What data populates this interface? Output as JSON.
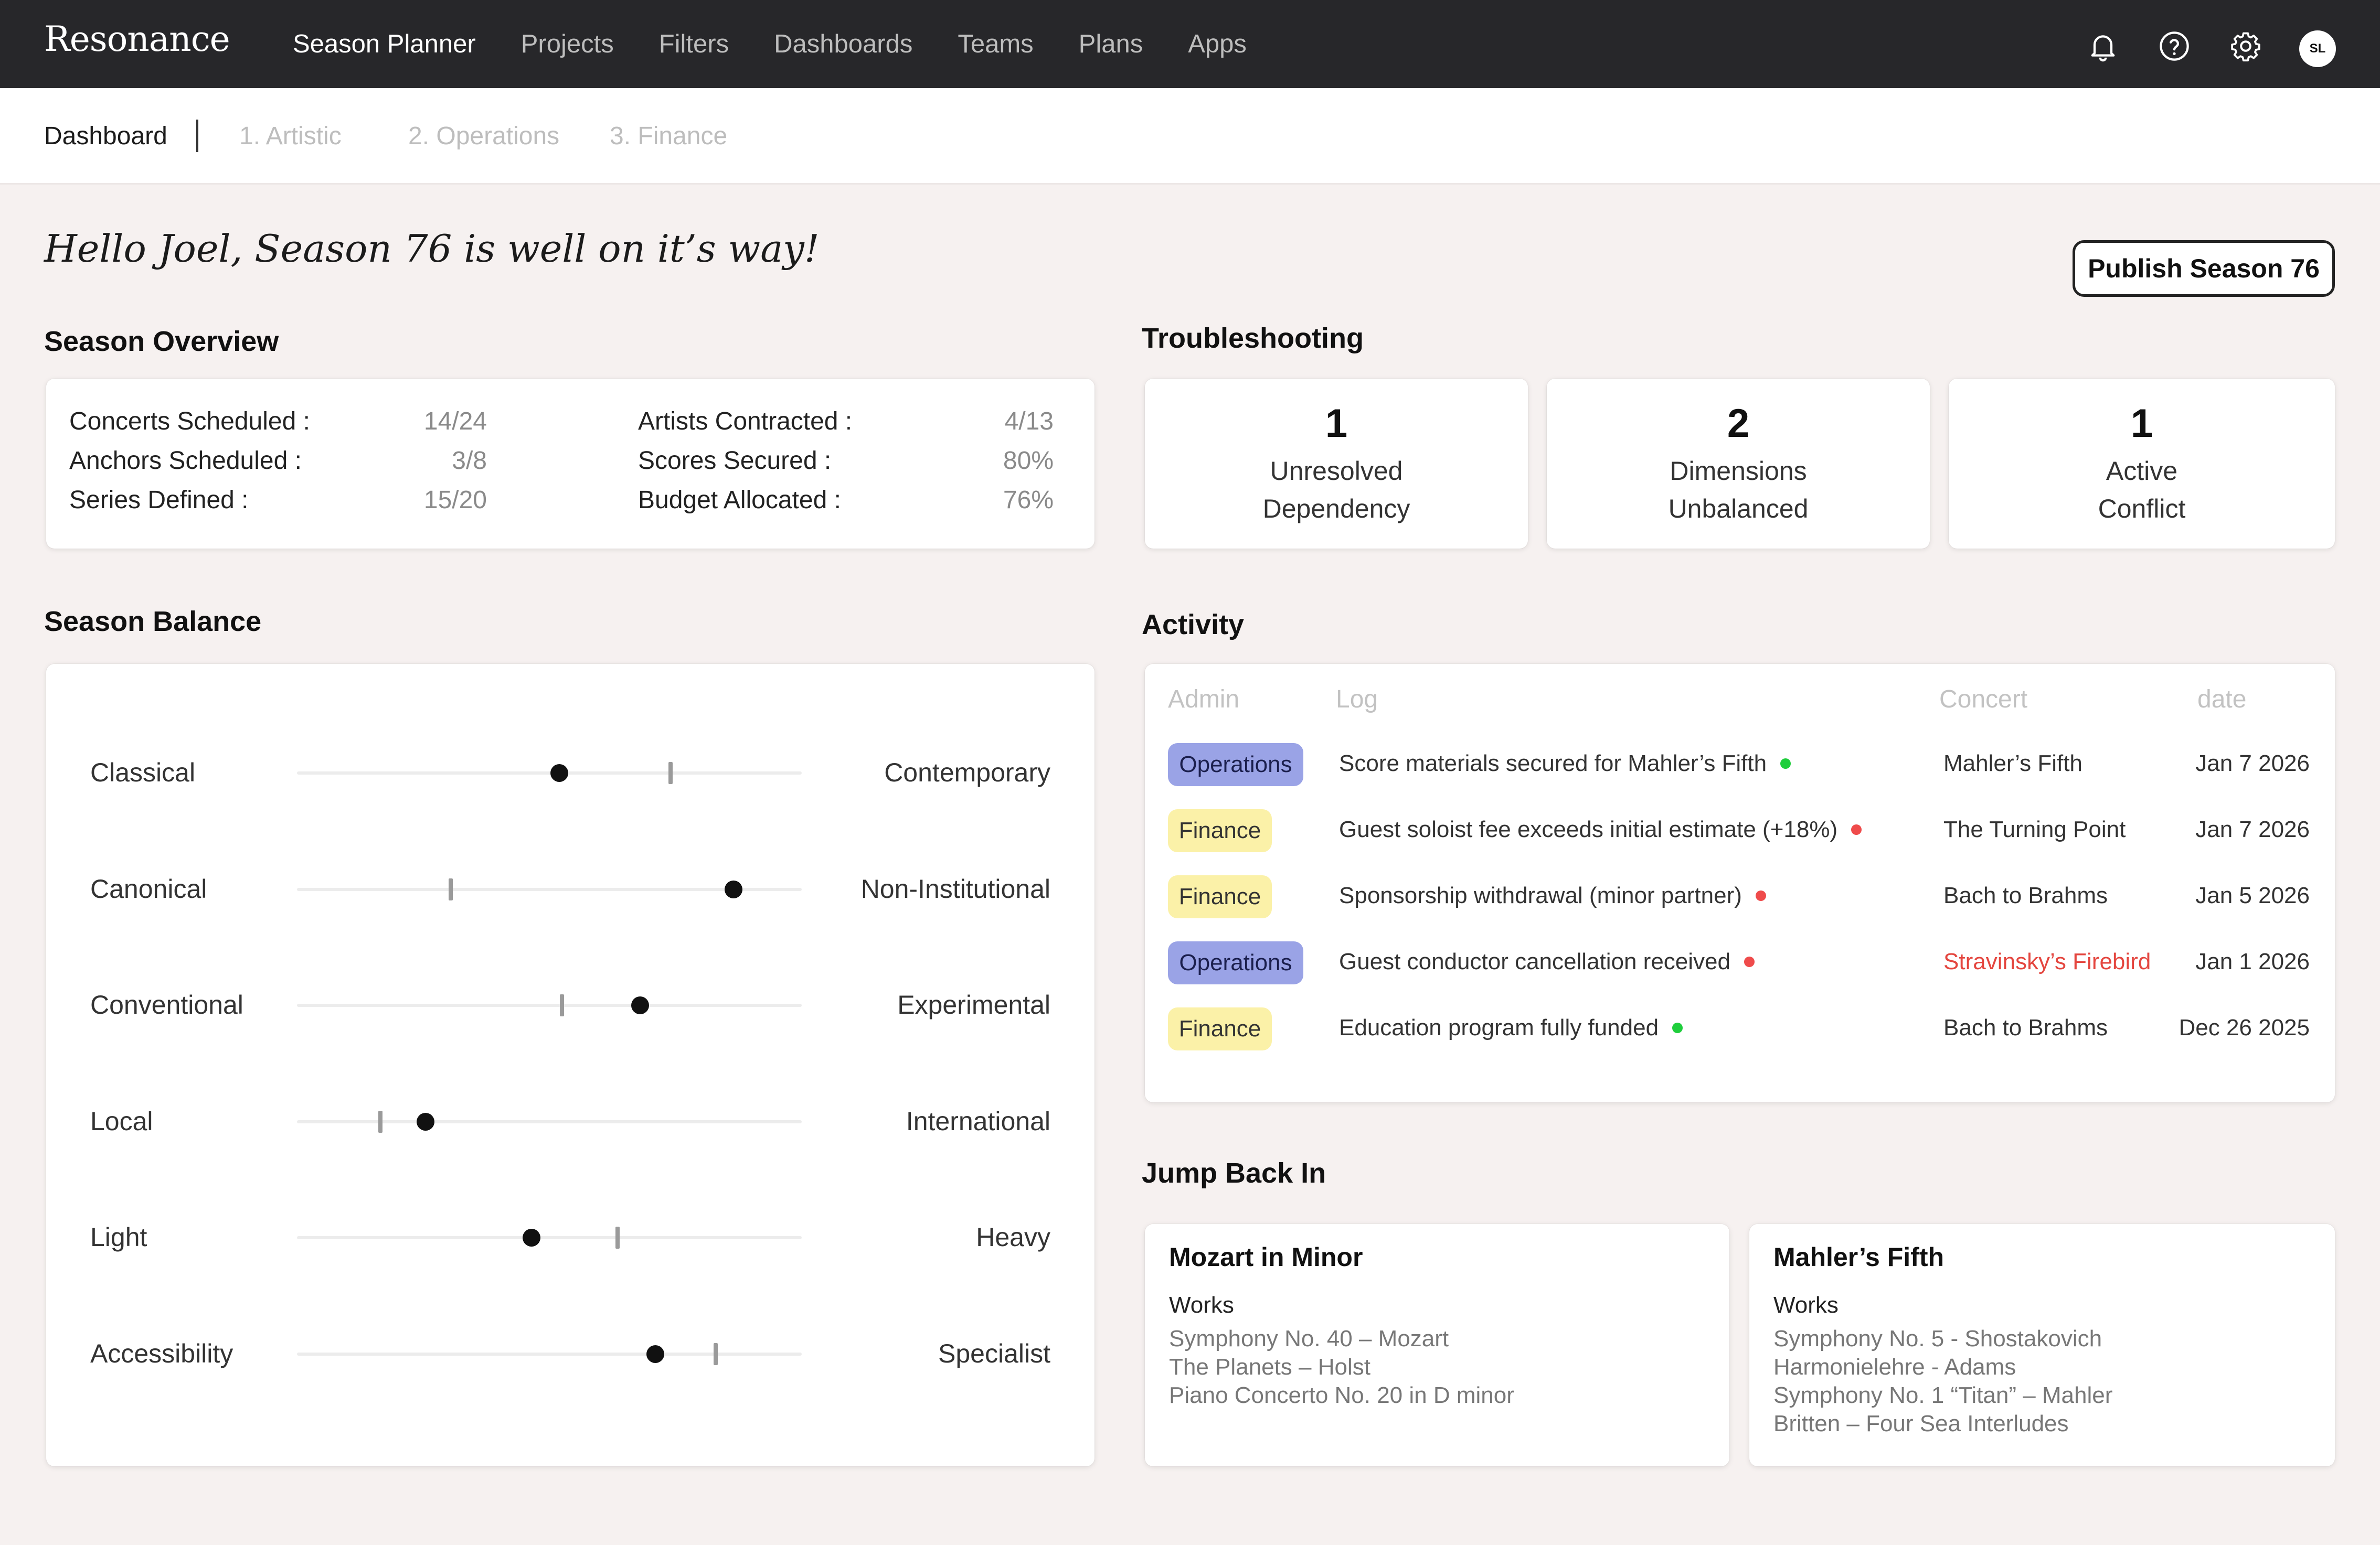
{
  "app": {
    "brand": "Resonance"
  },
  "nav": {
    "items": [
      "Season Planner",
      "Projects",
      "Filters",
      "Dashboards",
      "Teams",
      "Plans",
      "Apps"
    ],
    "active_index": 0,
    "icons": [
      "bell-icon",
      "help-circle-icon",
      "gear-icon"
    ],
    "avatar_initials": "SL"
  },
  "subnav": {
    "tabs": [
      "Dashboard",
      "1. Artistic",
      "2. Operations",
      "3. Finance"
    ],
    "active_index": 0
  },
  "greeting": "Hello Joel, Season 76 is well on it’s way!",
  "publish_button": "Publish Season 76",
  "overview": {
    "title": "Season Overview",
    "rows": [
      {
        "label": "Concerts Scheduled :",
        "value": "14/24"
      },
      {
        "label": "Anchors Scheduled :",
        "value": "3/8"
      },
      {
        "label": "Series Defined :",
        "value": "15/20"
      },
      {
        "label": "Artists Contracted :",
        "value": "4/13"
      },
      {
        "label": "Scores Secured :",
        "value": "80%"
      },
      {
        "label": "Budget Allocated :",
        "value": "76%"
      }
    ]
  },
  "troubleshooting": {
    "title": "Troubleshooting",
    "cards": [
      {
        "count": "1",
        "line1": "Unresolved",
        "line2": "Dependency"
      },
      {
        "count": "2",
        "line1": "Dimensions",
        "line2": "Unbalanced"
      },
      {
        "count": "1",
        "line1": "Active",
        "line2": "Conflict"
      }
    ]
  },
  "balance": {
    "title": "Season Balance",
    "rows": [
      {
        "left": "Classical",
        "right": "Contemporary",
        "value": 0.52,
        "target": 0.74
      },
      {
        "left": "Canonical",
        "right": "Non-Institutional",
        "value": 0.865,
        "target": 0.305
      },
      {
        "left": "Conventional",
        "right": "Experimental",
        "value": 0.68,
        "target": 0.525
      },
      {
        "left": "Local",
        "right": "International",
        "value": 0.255,
        "target": 0.165
      },
      {
        "left": "Light",
        "right": "Heavy",
        "value": 0.465,
        "target": 0.635
      },
      {
        "left": "Accessibility",
        "right": "Specialist",
        "value": 0.71,
        "target": 0.83
      }
    ]
  },
  "activity": {
    "title": "Activity",
    "columns": [
      "Admin",
      "Log",
      "Concert",
      "date"
    ],
    "rows": [
      {
        "admin": "Operations",
        "log": "Score materials secured for Mahler’s Fifth",
        "status": "positive",
        "concert": "Mahler’s Fifth",
        "concert_alert": false,
        "date": "Jan 7 2026"
      },
      {
        "admin": "Finance",
        "log": "Guest soloist fee exceeds initial estimate (+18%)",
        "status": "negative",
        "concert": "The Turning Point",
        "concert_alert": false,
        "date": "Jan 7 2026"
      },
      {
        "admin": "Finance",
        "log": "Sponsorship withdrawal (minor partner)",
        "status": "negative",
        "concert": "Bach to Brahms",
        "concert_alert": false,
        "date": "Jan 5 2026"
      },
      {
        "admin": "Operations",
        "log": "Guest conductor cancellation received",
        "status": "negative",
        "concert": "Stravinsky’s Firebird",
        "concert_alert": true,
        "date": "Jan 1 2026"
      },
      {
        "admin": "Finance",
        "log": "Education program fully funded",
        "status": "positive",
        "concert": "Bach to Brahms",
        "concert_alert": false,
        "date": "Dec 26 2025"
      }
    ]
  },
  "jump_back_in": {
    "title": "Jump Back In",
    "cards": [
      {
        "title": "Mozart in Minor",
        "works_label": "Works",
        "works": [
          "Symphony No. 40 – Mozart",
          "The Planets – Holst",
          "Piano Concerto No. 20 in D minor"
        ]
      },
      {
        "title": "Mahler’s Fifth",
        "works_label": "Works",
        "works": [
          "Symphony No. 5 - Shostakovich",
          "Harmonielehre - Adams",
          "Symphony No. 1 “Titan” – Mahler",
          "Britten – Four Sea Interludes"
        ]
      }
    ]
  },
  "colors": {
    "nav_bg": "#27272a",
    "page_bg": "#f6f1f0",
    "ops_tag": "#9aa3e6",
    "finance_tag": "#fbf1a8",
    "positive": "#1fce3c",
    "negative": "#ef4b4b",
    "alert_text": "#e4463f"
  }
}
